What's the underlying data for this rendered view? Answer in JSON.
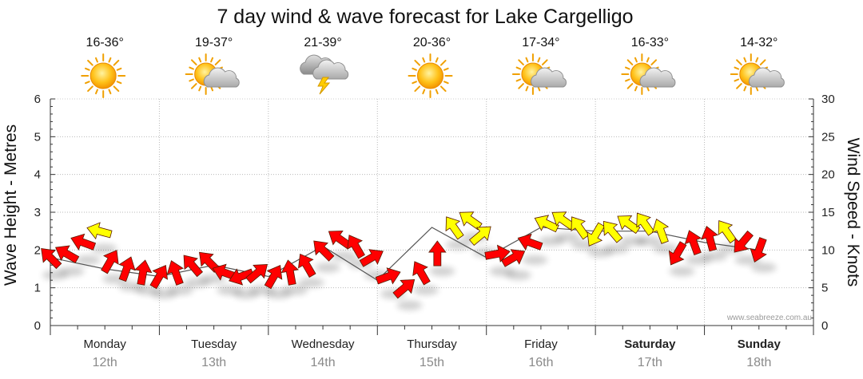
{
  "chart_data": {
    "type": "line",
    "title": "7 day wind & wave forecast for Lake Cargelligo",
    "ylabel_left": "Wave Height - Metres",
    "ylabel_right": "Wind Speed - Knots",
    "ylim_left": [
      0,
      6
    ],
    "ylim_right": [
      0,
      30
    ],
    "yticks_left": [
      "0",
      "1",
      "2",
      "3",
      "4",
      "5",
      "6"
    ],
    "yticks_right": [
      "0",
      "5",
      "10",
      "15",
      "20",
      "25",
      "30"
    ],
    "watermark": "www.seabreeze.com.au",
    "days": [
      {
        "name": "Monday",
        "date": "12th",
        "temp": "16-36°",
        "icon": "sun-icon",
        "bold": false
      },
      {
        "name": "Tuesday",
        "date": "13th",
        "temp": "19-37°",
        "icon": "partly-cloudy-icon",
        "bold": false
      },
      {
        "name": "Wednesday",
        "date": "14th",
        "temp": "21-39°",
        "icon": "thunderstorm-icon",
        "bold": false
      },
      {
        "name": "Thursday",
        "date": "15th",
        "temp": "20-36°",
        "icon": "sun-icon",
        "bold": false
      },
      {
        "name": "Friday",
        "date": "16th",
        "temp": "17-34°",
        "icon": "partly-cloudy-icon",
        "bold": false
      },
      {
        "name": "Saturday",
        "date": "17th",
        "temp": "16-33°",
        "icon": "partly-cloudy-icon",
        "bold": true
      },
      {
        "name": "Sunday",
        "date": "18th",
        "temp": "14-32°",
        "icon": "partly-cloudy-icon",
        "bold": true
      }
    ],
    "series": [
      {
        "name": "Wind Speed (knots)",
        "color_calm": "#ff0000",
        "color_fresh": "#ffff00",
        "wind": [
          {
            "t": 0.0,
            "speed": 9.0,
            "dir": 225
          },
          {
            "t": 0.15,
            "speed": 9.5,
            "dir": 210
          },
          {
            "t": 0.3,
            "speed": 11.0,
            "dir": 200
          },
          {
            "t": 0.45,
            "speed": 12.5,
            "dir": 195
          },
          {
            "t": 0.55,
            "speed": 8.5,
            "dir": 300
          },
          {
            "t": 0.7,
            "speed": 7.5,
            "dir": 290
          },
          {
            "t": 0.85,
            "speed": 7.0,
            "dir": 280
          },
          {
            "t": 1.0,
            "speed": 6.5,
            "dir": 300
          },
          {
            "t": 1.15,
            "speed": 7.0,
            "dir": 250
          },
          {
            "t": 1.3,
            "speed": 8.0,
            "dir": 230
          },
          {
            "t": 1.45,
            "speed": 8.5,
            "dir": 225
          },
          {
            "t": 1.6,
            "speed": 7.0,
            "dir": 200
          },
          {
            "t": 1.75,
            "speed": 6.5,
            "dir": 160
          },
          {
            "t": 1.9,
            "speed": 7.0,
            "dir": 320
          },
          {
            "t": 2.05,
            "speed": 6.5,
            "dir": 300
          },
          {
            "t": 2.2,
            "speed": 7.0,
            "dir": 260
          },
          {
            "t": 2.35,
            "speed": 8.0,
            "dir": 240
          },
          {
            "t": 2.5,
            "speed": 10.0,
            "dir": 225
          },
          {
            "t": 2.65,
            "speed": 11.5,
            "dir": 215
          },
          {
            "t": 2.8,
            "speed": 10.5,
            "dir": 240
          },
          {
            "t": 2.95,
            "speed": 9.0,
            "dir": 330
          },
          {
            "t": 3.1,
            "speed": 6.5,
            "dir": 340
          },
          {
            "t": 3.25,
            "speed": 5.0,
            "dir": 320
          },
          {
            "t": 3.4,
            "speed": 7.0,
            "dir": 240
          },
          {
            "t": 3.55,
            "speed": 9.5,
            "dir": 270
          },
          {
            "t": 3.7,
            "speed": 13.0,
            "dir": 235
          },
          {
            "t": 3.85,
            "speed": 14.0,
            "dir": 215
          },
          {
            "t": 3.95,
            "speed": 12.0,
            "dir": 320
          },
          {
            "t": 4.1,
            "speed": 9.5,
            "dir": 350
          },
          {
            "t": 4.25,
            "speed": 9.0,
            "dir": 330
          },
          {
            "t": 4.4,
            "speed": 11.0,
            "dir": 200
          },
          {
            "t": 4.55,
            "speed": 13.5,
            "dir": 205
          },
          {
            "t": 4.7,
            "speed": 14.0,
            "dir": 215
          },
          {
            "t": 4.85,
            "speed": 13.0,
            "dir": 235
          },
          {
            "t": 5.0,
            "speed": 12.0,
            "dir": 120
          },
          {
            "t": 5.15,
            "speed": 12.5,
            "dir": 230
          },
          {
            "t": 5.3,
            "speed": 13.5,
            "dir": 215
          },
          {
            "t": 5.45,
            "speed": 13.5,
            "dir": 235
          },
          {
            "t": 5.6,
            "speed": 12.5,
            "dir": 250
          },
          {
            "t": 5.75,
            "speed": 9.5,
            "dir": 120
          },
          {
            "t": 5.9,
            "speed": 11.0,
            "dir": 250
          },
          {
            "t": 6.05,
            "speed": 11.5,
            "dir": 255
          },
          {
            "t": 6.2,
            "speed": 12.5,
            "dir": 235
          },
          {
            "t": 6.35,
            "speed": 11.0,
            "dir": 130
          },
          {
            "t": 6.5,
            "speed": 10.0,
            "dir": 110
          }
        ]
      },
      {
        "name": "Wave Height (m)",
        "color": "#555555",
        "x": [
          0.0,
          0.5,
          1.0,
          1.5,
          2.0,
          2.5,
          3.0,
          3.5,
          4.0,
          4.5,
          5.0,
          5.5,
          6.0,
          6.5
        ],
        "values": [
          1.8,
          1.5,
          1.3,
          1.6,
          1.3,
          2.1,
          1.2,
          2.6,
          1.8,
          2.6,
          2.5,
          2.5,
          2.2,
          2.0
        ]
      }
    ]
  },
  "colors": {
    "calm": "#ff0000",
    "fresh": "#ffff00",
    "grid": "#b9b9b9",
    "date": "#8a8a8a"
  }
}
